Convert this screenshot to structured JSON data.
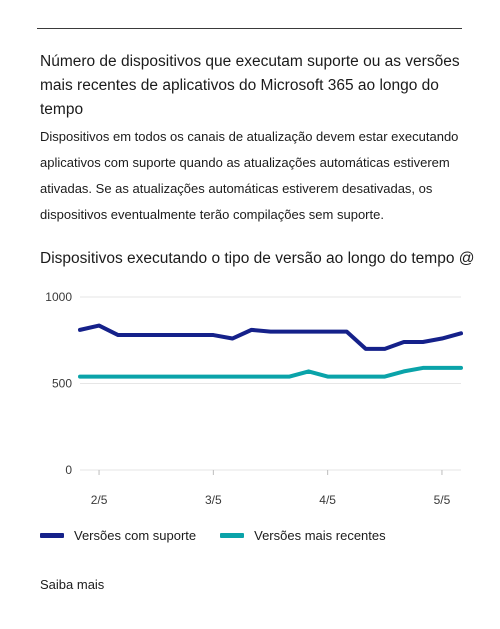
{
  "card": {
    "title": "Número de dispositivos que executam suporte ou as versões mais recentes de aplicativos do Microsoft 365 ao longo do tempo",
    "description": "Dispositivos em todos os canais de atualização devem estar executando aplicativos com suporte quando as atualizações automáticas estiverem ativadas. Se as atualizações automáticas estiverem desativadas, os dispositivos eventualmente terão compilações sem suporte.",
    "chart_title": "Dispositivos executando o tipo de versão ao longo do tempo @",
    "learn_more": "Saiba mais"
  },
  "colors": {
    "supported": "#15218a",
    "latest": "#0aa3a9",
    "grid": "#e6e6e6"
  },
  "chart_data": {
    "type": "line",
    "title": "Dispositivos executando o tipo de versão ao longo do tempo @",
    "xlabel": "",
    "ylabel": "",
    "x": [
      0,
      1,
      2,
      3,
      4,
      5,
      6,
      7,
      8,
      9,
      10,
      11,
      12,
      13,
      14,
      15,
      16,
      17,
      18,
      19,
      20
    ],
    "x_tick_positions": [
      1,
      7,
      13,
      19
    ],
    "x_tick_labels": [
      "2/5",
      "3/5",
      "4/5",
      "5/5"
    ],
    "y_ticks": [
      0,
      500,
      1000
    ],
    "ylim": [
      0,
      1000
    ],
    "grid": true,
    "legend_position": "bottom-left",
    "series": [
      {
        "name": "Versões com suporte",
        "values": [
          810,
          835,
          780,
          780,
          780,
          780,
          780,
          780,
          760,
          810,
          800,
          800,
          800,
          800,
          800,
          700,
          700,
          740,
          740,
          760,
          790
        ]
      },
      {
        "name": "Versões mais recentes",
        "values": [
          540,
          540,
          540,
          540,
          540,
          540,
          540,
          540,
          540,
          540,
          540,
          540,
          570,
          540,
          540,
          540,
          540,
          570,
          590,
          590,
          590
        ]
      }
    ]
  }
}
